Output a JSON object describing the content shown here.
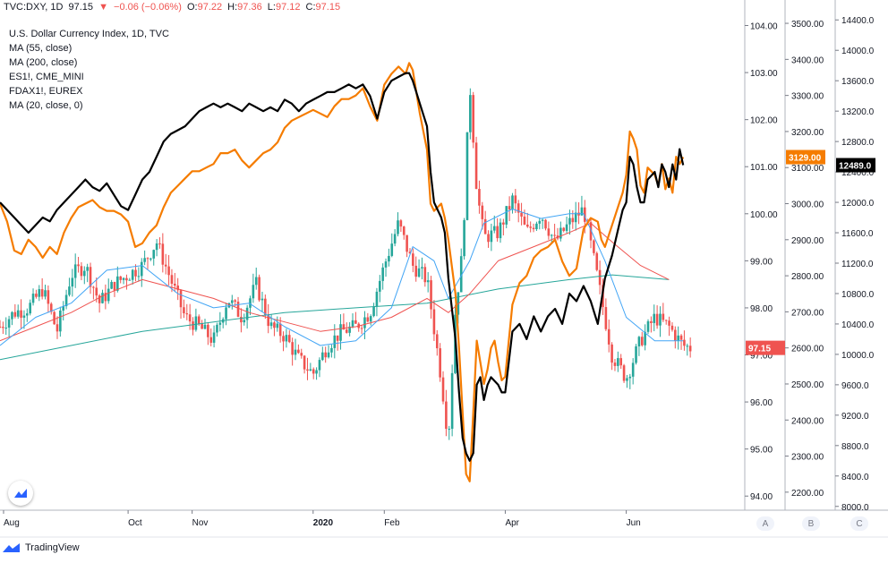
{
  "header": {
    "symbol": "TVC:DXY, 1D",
    "last": "97.15",
    "change_arrow": "▼",
    "change": "−0.06 (−0.06%)",
    "o_label": "O:",
    "o": "97.22",
    "h_label": "H:",
    "h": "97.36",
    "l_label": "L:",
    "l": "97.12",
    "c_label": "C:",
    "c": "97.15"
  },
  "legend": [
    "U.S. Dollar Currency Index, 1D, TVC",
    "MA (55, close)",
    "MA (200, close)",
    "ES1!, CME_MINI",
    "FDAX1!, EUREX",
    "MA (20, close, 0)"
  ],
  "scale_buttons": [
    "A",
    "B",
    "C"
  ],
  "footer": {
    "brand": "TradingView"
  },
  "chart_data": {
    "type": "candlestick",
    "x_axis": {
      "ticks": [
        "Aug",
        "Oct",
        "Nov",
        "2020",
        "Feb",
        "Apr",
        "Jun"
      ],
      "bold": [
        "2020"
      ]
    },
    "axes": {
      "A": {
        "ticks": [
          "94.00",
          "95.00",
          "96.00",
          "97.00",
          "98.00",
          "99.00",
          "100.00",
          "101.00",
          "102.00",
          "103.00",
          "104.00"
        ],
        "range": [
          93.7,
          104.2
        ]
      },
      "B": {
        "ticks": [
          "2200.00",
          "2300.00",
          "2400.00",
          "2500.00",
          "2600.00",
          "2700.00",
          "2800.00",
          "2900.00",
          "3000.00",
          "3100.00",
          "3200.00",
          "3300.00",
          "3400.00",
          "3500.00"
        ],
        "range": [
          2150,
          3520
        ]
      },
      "C": {
        "ticks": [
          "8000.0",
          "8400.0",
          "8800.0",
          "9200.0",
          "9600.0",
          "10000.0",
          "10400.0",
          "10800.0",
          "11200.0",
          "11600.0",
          "12000.0",
          "12400.0",
          "12800.0",
          "13200.0",
          "13600.0",
          "14000.0",
          "14400.0"
        ],
        "range": [
          7950,
          14450
        ]
      }
    },
    "price_labels": [
      {
        "axis": "A",
        "value": 97.15,
        "text": "97.15",
        "color": "#ef5350"
      },
      {
        "axis": "B",
        "value": 3129,
        "text": "3129.00",
        "color": "#f57c00"
      },
      {
        "axis": "C",
        "value": 12489,
        "text": "12489.0",
        "color": "#000000"
      }
    ],
    "colors": {
      "up": "#26a69a",
      "down": "#ef5350",
      "ma55": "#ef5350",
      "ma200": "#26a69a",
      "ma20": "#42a5f5",
      "es": "#f57c00",
      "fdax": "#000000"
    },
    "dxy_path": [
      [
        0,
        97.6
      ],
      [
        0.02,
        97.9
      ],
      [
        0.04,
        98.0
      ],
      [
        0.06,
        98.4
      ],
      [
        0.08,
        97.5
      ],
      [
        0.1,
        98.7
      ],
      [
        0.12,
        98.9
      ],
      [
        0.14,
        98.1
      ],
      [
        0.16,
        98.5
      ],
      [
        0.18,
        98.7
      ],
      [
        0.2,
        98.9
      ],
      [
        0.22,
        99.4
      ],
      [
        0.24,
        98.6
      ],
      [
        0.26,
        97.8
      ],
      [
        0.28,
        97.6
      ],
      [
        0.3,
        97.3
      ],
      [
        0.32,
        98.2
      ],
      [
        0.34,
        97.8
      ],
      [
        0.36,
        98.5
      ],
      [
        0.38,
        97.6
      ],
      [
        0.4,
        97.4
      ],
      [
        0.42,
        96.9
      ],
      [
        0.44,
        96.6
      ],
      [
        0.46,
        97.2
      ],
      [
        0.48,
        97.5
      ],
      [
        0.5,
        97.6
      ],
      [
        0.52,
        97.9
      ],
      [
        0.54,
        98.9
      ],
      [
        0.56,
        99.8
      ],
      [
        0.58,
        98.9
      ],
      [
        0.6,
        98.6
      ],
      [
        0.62,
        96.5
      ],
      [
        0.63,
        95.2
      ],
      [
        0.64,
        98.0
      ],
      [
        0.65,
        99.2
      ],
      [
        0.66,
        102.8
      ],
      [
        0.67,
        100.5
      ],
      [
        0.68,
        99.5
      ],
      [
        0.7,
        99.6
      ],
      [
        0.72,
        100.3
      ],
      [
        0.74,
        99.6
      ],
      [
        0.76,
        100.0
      ],
      [
        0.78,
        99.4
      ],
      [
        0.8,
        99.8
      ],
      [
        0.82,
        100.1
      ],
      [
        0.84,
        98.6
      ],
      [
        0.86,
        97.0
      ],
      [
        0.88,
        96.5
      ],
      [
        0.9,
        97.3
      ],
      [
        0.92,
        97.8
      ],
      [
        0.94,
        97.6
      ],
      [
        0.96,
        97.2
      ],
      [
        0.97,
        97.15
      ]
    ],
    "ma20_path": [
      [
        0,
        97.2
      ],
      [
        0.05,
        97.8
      ],
      [
        0.1,
        98.1
      ],
      [
        0.15,
        98.8
      ],
      [
        0.2,
        98.9
      ],
      [
        0.25,
        98.3
      ],
      [
        0.3,
        98.0
      ],
      [
        0.35,
        98.1
      ],
      [
        0.4,
        97.6
      ],
      [
        0.45,
        97.2
      ],
      [
        0.5,
        97.3
      ],
      [
        0.55,
        98.0
      ],
      [
        0.58,
        99.3
      ],
      [
        0.61,
        99.0
      ],
      [
        0.63,
        98.2
      ],
      [
        0.66,
        99.0
      ],
      [
        0.68,
        99.8
      ],
      [
        0.72,
        100.1
      ],
      [
        0.76,
        99.9
      ],
      [
        0.8,
        100.0
      ],
      [
        0.82,
        100.0
      ],
      [
        0.85,
        99.0
      ],
      [
        0.88,
        97.8
      ],
      [
        0.92,
        97.3
      ],
      [
        0.96,
        97.3
      ]
    ],
    "ma55_path": [
      [
        0,
        97.3
      ],
      [
        0.05,
        97.6
      ],
      [
        0.1,
        97.9
      ],
      [
        0.15,
        98.3
      ],
      [
        0.2,
        98.6
      ],
      [
        0.25,
        98.4
      ],
      [
        0.3,
        98.2
      ],
      [
        0.35,
        97.9
      ],
      [
        0.4,
        97.7
      ],
      [
        0.45,
        97.5
      ],
      [
        0.5,
        97.6
      ],
      [
        0.55,
        97.8
      ],
      [
        0.6,
        98.2
      ],
      [
        0.63,
        97.9
      ],
      [
        0.66,
        98.3
      ],
      [
        0.7,
        99.0
      ],
      [
        0.75,
        99.3
      ],
      [
        0.8,
        99.6
      ],
      [
        0.83,
        99.8
      ],
      [
        0.86,
        99.4
      ],
      [
        0.9,
        98.9
      ],
      [
        0.94,
        98.6
      ]
    ],
    "ma200_path": [
      [
        0,
        96.9
      ],
      [
        0.1,
        97.2
      ],
      [
        0.2,
        97.5
      ],
      [
        0.3,
        97.7
      ],
      [
        0.4,
        97.9
      ],
      [
        0.5,
        98.0
      ],
      [
        0.6,
        98.1
      ],
      [
        0.7,
        98.4
      ],
      [
        0.8,
        98.6
      ],
      [
        0.86,
        98.7
      ],
      [
        0.94,
        98.6
      ]
    ],
    "es_path": [
      [
        0,
        3000
      ],
      [
        0.01,
        2950
      ],
      [
        0.02,
        2870
      ],
      [
        0.03,
        2860
      ],
      [
        0.04,
        2900
      ],
      [
        0.05,
        2880
      ],
      [
        0.06,
        2850
      ],
      [
        0.07,
        2880
      ],
      [
        0.08,
        2860
      ],
      [
        0.09,
        2920
      ],
      [
        0.1,
        2960
      ],
      [
        0.11,
        2990
      ],
      [
        0.12,
        3000
      ],
      [
        0.13,
        3010
      ],
      [
        0.14,
        2990
      ],
      [
        0.15,
        2980
      ],
      [
        0.16,
        2980
      ],
      [
        0.17,
        2970
      ],
      [
        0.18,
        2950
      ],
      [
        0.19,
        2880
      ],
      [
        0.2,
        2890
      ],
      [
        0.21,
        2920
      ],
      [
        0.22,
        2940
      ],
      [
        0.23,
        2990
      ],
      [
        0.24,
        3030
      ],
      [
        0.25,
        3050
      ],
      [
        0.26,
        3070
      ],
      [
        0.27,
        3090
      ],
      [
        0.28,
        3090
      ],
      [
        0.29,
        3100
      ],
      [
        0.3,
        3110
      ],
      [
        0.31,
        3140
      ],
      [
        0.32,
        3140
      ],
      [
        0.33,
        3150
      ],
      [
        0.34,
        3120
      ],
      [
        0.35,
        3100
      ],
      [
        0.36,
        3120
      ],
      [
        0.37,
        3140
      ],
      [
        0.38,
        3150
      ],
      [
        0.39,
        3170
      ],
      [
        0.4,
        3210
      ],
      [
        0.41,
        3230
      ],
      [
        0.42,
        3240
      ],
      [
        0.43,
        3250
      ],
      [
        0.44,
        3260
      ],
      [
        0.45,
        3250
      ],
      [
        0.46,
        3240
      ],
      [
        0.47,
        3270
      ],
      [
        0.48,
        3290
      ],
      [
        0.49,
        3290
      ],
      [
        0.5,
        3300
      ],
      [
        0.51,
        3320
      ],
      [
        0.52,
        3270
      ],
      [
        0.53,
        3230
      ],
      [
        0.54,
        3330
      ],
      [
        0.55,
        3360
      ],
      [
        0.56,
        3380
      ],
      [
        0.57,
        3360
      ],
      [
        0.575,
        3390
      ],
      [
        0.58,
        3370
      ],
      [
        0.59,
        3250
      ],
      [
        0.6,
        3150
      ],
      [
        0.605,
        3000
      ],
      [
        0.61,
        2980
      ],
      [
        0.62,
        3000
      ],
      [
        0.625,
        2960
      ],
      [
        0.63,
        2900
      ],
      [
        0.64,
        2750
      ],
      [
        0.645,
        2600
      ],
      [
        0.65,
        2420
      ],
      [
        0.655,
        2250
      ],
      [
        0.66,
        2230
      ],
      [
        0.665,
        2420
      ],
      [
        0.67,
        2620
      ],
      [
        0.675,
        2560
      ],
      [
        0.68,
        2500
      ],
      [
        0.685,
        2540
      ],
      [
        0.69,
        2600
      ],
      [
        0.695,
        2620
      ],
      [
        0.7,
        2560
      ],
      [
        0.705,
        2510
      ],
      [
        0.71,
        2520
      ],
      [
        0.72,
        2720
      ],
      [
        0.73,
        2780
      ],
      [
        0.74,
        2800
      ],
      [
        0.75,
        2850
      ],
      [
        0.76,
        2870
      ],
      [
        0.77,
        2880
      ],
      [
        0.78,
        2900
      ],
      [
        0.79,
        2840
      ],
      [
        0.8,
        2800
      ],
      [
        0.81,
        2820
      ],
      [
        0.82,
        2930
      ],
      [
        0.83,
        2960
      ],
      [
        0.84,
        2950
      ],
      [
        0.845,
        2900
      ],
      [
        0.85,
        2880
      ],
      [
        0.86,
        2940
      ],
      [
        0.87,
        3000
      ],
      [
        0.875,
        3030
      ],
      [
        0.88,
        3080
      ],
      [
        0.885,
        3200
      ],
      [
        0.89,
        3180
      ],
      [
        0.895,
        3150
      ],
      [
        0.9,
        3050
      ],
      [
        0.905,
        3030
      ],
      [
        0.91,
        3100
      ],
      [
        0.92,
        3080
      ],
      [
        0.925,
        3050
      ],
      [
        0.93,
        3110
      ],
      [
        0.935,
        3040
      ],
      [
        0.94,
        3070
      ],
      [
        0.945,
        3030
      ],
      [
        0.95,
        3130
      ],
      [
        0.955,
        3110
      ],
      [
        0.96,
        3129
      ]
    ],
    "fdax_path": [
      [
        0,
        12000
      ],
      [
        0.01,
        11900
      ],
      [
        0.02,
        11800
      ],
      [
        0.03,
        11700
      ],
      [
        0.04,
        11600
      ],
      [
        0.05,
        11700
      ],
      [
        0.06,
        11800
      ],
      [
        0.07,
        11750
      ],
      [
        0.08,
        11900
      ],
      [
        0.09,
        12000
      ],
      [
        0.1,
        12100
      ],
      [
        0.11,
        12200
      ],
      [
        0.12,
        12300
      ],
      [
        0.13,
        12200
      ],
      [
        0.14,
        12150
      ],
      [
        0.15,
        12250
      ],
      [
        0.16,
        12100
      ],
      [
        0.17,
        11950
      ],
      [
        0.18,
        11900
      ],
      [
        0.19,
        12100
      ],
      [
        0.2,
        12300
      ],
      [
        0.21,
        12400
      ],
      [
        0.22,
        12600
      ],
      [
        0.23,
        12800
      ],
      [
        0.24,
        12900
      ],
      [
        0.25,
        12950
      ],
      [
        0.26,
        13000
      ],
      [
        0.27,
        13100
      ],
      [
        0.28,
        13200
      ],
      [
        0.29,
        13250
      ],
      [
        0.3,
        13300
      ],
      [
        0.31,
        13250
      ],
      [
        0.32,
        13300
      ],
      [
        0.33,
        13250
      ],
      [
        0.34,
        13200
      ],
      [
        0.35,
        13300
      ],
      [
        0.36,
        13250
      ],
      [
        0.37,
        13200
      ],
      [
        0.38,
        13250
      ],
      [
        0.39,
        13200
      ],
      [
        0.4,
        13350
      ],
      [
        0.41,
        13300
      ],
      [
        0.42,
        13200
      ],
      [
        0.43,
        13300
      ],
      [
        0.44,
        13350
      ],
      [
        0.45,
        13400
      ],
      [
        0.46,
        13450
      ],
      [
        0.47,
        13450
      ],
      [
        0.48,
        13500
      ],
      [
        0.49,
        13550
      ],
      [
        0.5,
        13500
      ],
      [
        0.51,
        13550
      ],
      [
        0.52,
        13400
      ],
      [
        0.53,
        13100
      ],
      [
        0.54,
        13450
      ],
      [
        0.55,
        13600
      ],
      [
        0.56,
        13650
      ],
      [
        0.57,
        13700
      ],
      [
        0.575,
        13700
      ],
      [
        0.58,
        13600
      ],
      [
        0.59,
        13300
      ],
      [
        0.6,
        13000
      ],
      [
        0.605,
        12400
      ],
      [
        0.61,
        12000
      ],
      [
        0.62,
        11800
      ],
      [
        0.625,
        11600
      ],
      [
        0.63,
        11000
      ],
      [
        0.64,
        10200
      ],
      [
        0.645,
        9500
      ],
      [
        0.65,
        8900
      ],
      [
        0.655,
        8700
      ],
      [
        0.66,
        8600
      ],
      [
        0.665,
        8700
      ],
      [
        0.67,
        9600
      ],
      [
        0.675,
        9700
      ],
      [
        0.68,
        9400
      ],
      [
        0.685,
        9600
      ],
      [
        0.69,
        9700
      ],
      [
        0.7,
        9600
      ],
      [
        0.705,
        9500
      ],
      [
        0.71,
        9500
      ],
      [
        0.72,
        10300
      ],
      [
        0.73,
        10400
      ],
      [
        0.74,
        10200
      ],
      [
        0.75,
        10500
      ],
      [
        0.76,
        10300
      ],
      [
        0.77,
        10500
      ],
      [
        0.78,
        10600
      ],
      [
        0.79,
        10400
      ],
      [
        0.8,
        10800
      ],
      [
        0.81,
        10700
      ],
      [
        0.82,
        10900
      ],
      [
        0.83,
        10700
      ],
      [
        0.84,
        10400
      ],
      [
        0.845,
        10700
      ],
      [
        0.85,
        11000
      ],
      [
        0.86,
        11300
      ],
      [
        0.87,
        11700
      ],
      [
        0.875,
        11900
      ],
      [
        0.88,
        12000
      ],
      [
        0.885,
        12600
      ],
      [
        0.89,
        12500
      ],
      [
        0.895,
        12200
      ],
      [
        0.9,
        12000
      ],
      [
        0.905,
        12000
      ],
      [
        0.91,
        12300
      ],
      [
        0.92,
        12400
      ],
      [
        0.925,
        12200
      ],
      [
        0.93,
        12500
      ],
      [
        0.935,
        12400
      ],
      [
        0.94,
        12200
      ],
      [
        0.945,
        12500
      ],
      [
        0.95,
        12300
      ],
      [
        0.955,
        12700
      ],
      [
        0.96,
        12489
      ]
    ]
  }
}
